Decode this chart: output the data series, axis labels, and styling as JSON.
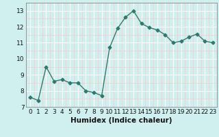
{
  "x": [
    0,
    1,
    2,
    3,
    4,
    5,
    6,
    7,
    8,
    9,
    10,
    11,
    12,
    13,
    14,
    15,
    16,
    17,
    18,
    19,
    20,
    21,
    22,
    23
  ],
  "y": [
    7.6,
    7.4,
    9.5,
    8.6,
    8.7,
    8.5,
    8.5,
    8.0,
    7.9,
    7.7,
    10.7,
    11.9,
    12.6,
    13.0,
    12.2,
    11.95,
    11.8,
    11.5,
    11.0,
    11.1,
    11.35,
    11.55,
    11.1,
    11.0
  ],
  "line_color": "#2d7a6e",
  "marker": "D",
  "marker_size": 2.5,
  "bg_color": "#cff0ee",
  "grid_major_color": "#ffffff",
  "grid_minor_color": "#f5cece",
  "xlabel": "Humidex (Indice chaleur)",
  "xlim": [
    -0.5,
    23.5
  ],
  "ylim": [
    7,
    13.5
  ],
  "yticks": [
    7,
    8,
    9,
    10,
    11,
    12,
    13
  ],
  "xticks": [
    0,
    1,
    2,
    3,
    4,
    5,
    6,
    7,
    8,
    9,
    10,
    11,
    12,
    13,
    14,
    15,
    16,
    17,
    18,
    19,
    20,
    21,
    22,
    23
  ],
  "tick_fontsize": 6.5,
  "label_fontsize": 7.5,
  "spine_color": "#888888"
}
